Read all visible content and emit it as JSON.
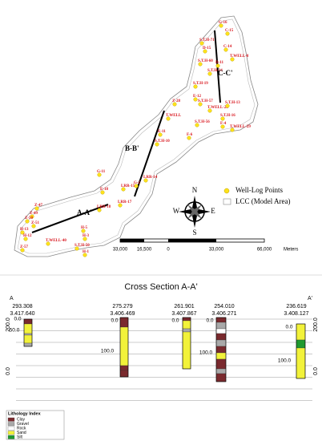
{
  "map": {
    "wells": [
      "G-16",
      "C-15",
      "S.T.H-71",
      "C-14",
      "D-15",
      "T.WELL-8",
      "S.T.H-60",
      "D-11",
      "S.T.H-34",
      "S.T.H-19",
      "E-12",
      "S.T.H-57",
      "T.WELL-28",
      "S.T.H-13",
      "S.T.H-16",
      "Z-28",
      "T.WELL",
      "F-4",
      "T.WELL-29",
      "S.T.H-56",
      "E-11",
      "S.T.H-10",
      "F-6",
      "G-11",
      "E-18",
      "G-2",
      "LRR-15",
      "LRR-14",
      "LRR-17",
      "LRR-18",
      "Z-47",
      "Z-49",
      "Z-50",
      "H-13",
      "Z-51",
      "H-12",
      "T.WELL-40",
      "H-5",
      "H-3",
      "Z-57",
      "S.T.H-50",
      "H-1"
    ],
    "sections": [
      "A-A'",
      "B-B'",
      "C-C'"
    ],
    "legend": [
      "Well-Log Points",
      "LCC (Model Area)"
    ],
    "compass": [
      "N",
      "E",
      "S",
      "W"
    ],
    "scale": [
      "33,000",
      "16,500",
      "0",
      "33,000",
      "66,000",
      "Meters"
    ]
  },
  "section": {
    "title": "Cross Section A-A'",
    "ends": [
      "A",
      "A'"
    ],
    "axis_left": [
      "200.0",
      "0.0"
    ],
    "axis_right": [
      "200.0",
      "0.0"
    ],
    "wells": [
      {
        "x": "293.308",
        "y": "3.417.640",
        "depths": [
          "0.0",
          "50.0"
        ]
      },
      {
        "x": "275.279",
        "y": "3.406.469",
        "depths": [
          "0.0",
          "100.0"
        ]
      },
      {
        "x": "261.901",
        "y": "3.407.867",
        "depths": [
          "0.0"
        ]
      },
      {
        "x": "254.010",
        "y": "3.406.271",
        "depths": [
          "0.0",
          "100.0"
        ]
      },
      {
        "x": "236.619",
        "y": "3.408.127",
        "depths": [
          "0.0",
          "100.0"
        ]
      }
    ],
    "lithology": {
      "title": "Lithology Index",
      "items": [
        {
          "name": "Clay",
          "color": "#7a2a2e"
        },
        {
          "name": "Gravel",
          "color": "#a9a9a9"
        },
        {
          "name": "Rock",
          "color": "#ffffff"
        },
        {
          "name": "Sand",
          "color": "#f2f23a"
        },
        {
          "name": "Silt",
          "color": "#1f9a2f"
        }
      ]
    }
  }
}
